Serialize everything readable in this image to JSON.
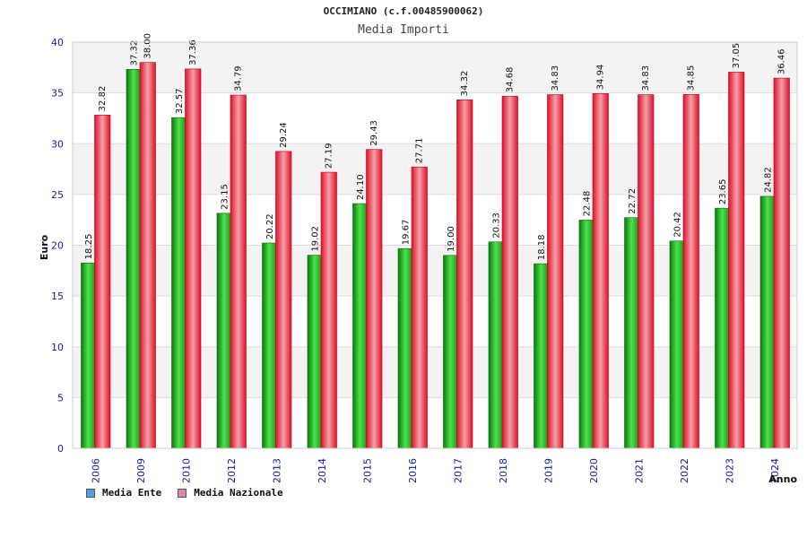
{
  "title": "OCCIMIANO (c.f.00485900062)",
  "subtitle": "Media Importi",
  "chart_data": {
    "type": "bar",
    "categories": [
      "2006",
      "2009",
      "2010",
      "2012",
      "2013",
      "2014",
      "2015",
      "2016",
      "2017",
      "2018",
      "2019",
      "2020",
      "2021",
      "2022",
      "2023",
      "2024"
    ],
    "series": [
      {
        "name": "Media Ente",
        "values": [
          18.25,
          37.32,
          32.57,
          23.15,
          20.22,
          19.02,
          24.1,
          19.67,
          19.0,
          20.33,
          18.18,
          22.48,
          22.72,
          20.42,
          23.65,
          24.82
        ],
        "labels": [
          "18.25",
          "37.32",
          "32.57",
          "23.15",
          "20.22",
          "19.02",
          "24.10",
          "19.67",
          "19.00",
          "20.33",
          "18.18",
          "22.48",
          "22.72",
          "20.42",
          "23.65",
          "24.82"
        ],
        "color": "#18b418",
        "legend_color": "#5599ee"
      },
      {
        "name": "Media Nazionale",
        "values": [
          32.82,
          38.0,
          37.36,
          34.79,
          29.24,
          27.19,
          29.43,
          27.71,
          34.32,
          34.68,
          34.83,
          34.94,
          34.83,
          34.85,
          37.05,
          36.46
        ],
        "labels": [
          "32.82",
          "38.00",
          "37.36",
          "34.79",
          "29.24",
          "27.19",
          "29.43",
          "27.71",
          "34.32",
          "34.68",
          "34.83",
          "34.94",
          "34.83",
          "34.85",
          "37.05",
          "36.46"
        ],
        "color": "#ee2233",
        "legend_color": "#dd88aa"
      }
    ],
    "xlabel": "Anno",
    "ylabel": "Euro",
    "ylim": [
      0,
      40
    ],
    "yticks": [
      0,
      5,
      10,
      15,
      20,
      25,
      30,
      35,
      40
    ],
    "grid": true,
    "legend_position": "bottom-left"
  }
}
